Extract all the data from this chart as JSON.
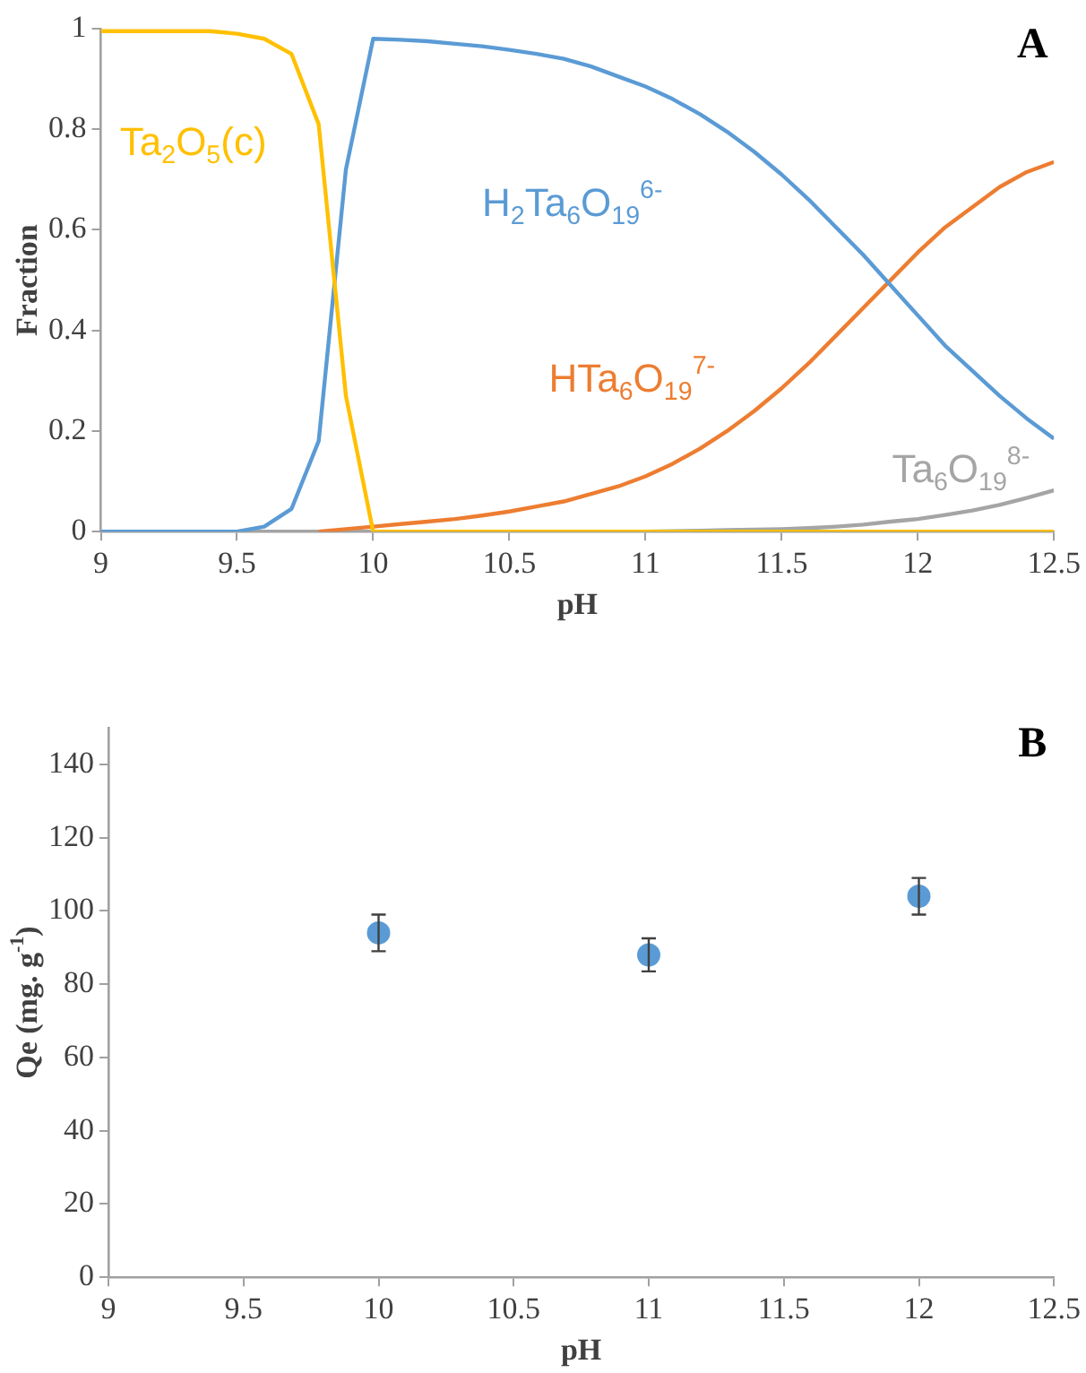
{
  "chart_data": [
    {
      "type": "line",
      "xlabel": "pH",
      "ylabel": "Fraction",
      "annotations": [
        "A"
      ],
      "x": [
        9,
        9.1,
        9.2,
        9.3,
        9.4,
        9.5,
        9.6,
        9.7,
        9.8,
        9.9,
        10,
        10.1,
        10.2,
        10.3,
        10.4,
        10.5,
        10.6,
        10.7,
        10.8,
        10.9,
        11,
        11.1,
        11.2,
        11.3,
        11.4,
        11.5,
        11.6,
        11.7,
        11.8,
        11.9,
        12,
        12.1,
        12.2,
        12.3,
        12.4,
        12.5
      ],
      "series": [
        {
          "name": "Ta$_{2}$O$_{5}$(c)",
          "color": "#ffc000",
          "values": [
            0.995,
            0.995,
            0.995,
            0.995,
            0.995,
            0.99,
            0.98,
            0.95,
            0.81,
            0.27,
            0,
            0,
            0,
            0,
            0,
            0,
            0,
            0,
            0,
            0,
            0,
            0,
            0,
            0,
            0,
            0,
            0,
            0,
            0,
            0,
            0,
            0,
            0,
            0,
            0,
            0
          ]
        },
        {
          "name": "H$_{2}$Ta$_{6}$O$_{19}$$^{6-}$",
          "color": "#5b9bd5",
          "values": [
            0,
            0,
            0,
            0,
            0,
            0,
            0.01,
            0.045,
            0.18,
            0.72,
            0.98,
            0.978,
            0.975,
            0.97,
            0.965,
            0.958,
            0.95,
            0.94,
            0.925,
            0.905,
            0.885,
            0.86,
            0.83,
            0.795,
            0.755,
            0.71,
            0.66,
            0.605,
            0.55,
            0.49,
            0.43,
            0.37,
            0.32,
            0.27,
            0.225,
            0.185
          ]
        },
        {
          "name": "HTa$_{6}$O$_{19}$$^{7-}$",
          "color": "#ed7d31",
          "values": [
            null,
            null,
            null,
            null,
            null,
            null,
            null,
            null,
            0,
            0.005,
            0.01,
            0.015,
            0.02,
            0.025,
            0.032,
            0.04,
            0.05,
            0.06,
            0.075,
            0.09,
            0.11,
            0.135,
            0.165,
            0.2,
            0.24,
            0.285,
            0.335,
            0.39,
            0.445,
            0.5,
            0.555,
            0.605,
            0.645,
            0.685,
            0.715,
            0.735
          ]
        },
        {
          "name": "Ta$_{6}$O$_{19}$$^{8-}$",
          "color": "#a5a5a5",
          "values": [
            0,
            0,
            0,
            0,
            0,
            0,
            0,
            0,
            0,
            0,
            0,
            0,
            0,
            0,
            0,
            0,
            0,
            0,
            0,
            0,
            0,
            0.001,
            0.002,
            0.003,
            0.004,
            0.005,
            0.007,
            0.01,
            0.014,
            0.02,
            0.025,
            0.033,
            0.042,
            0.053,
            0.067,
            0.082
          ]
        }
      ],
      "xlim": [
        9,
        12.5
      ],
      "xticks": [
        9,
        9.5,
        10,
        10.5,
        11,
        11.5,
        12,
        12.5
      ],
      "ylim": [
        0,
        1
      ],
      "yticks": [
        0,
        0.2,
        0.4,
        0.6,
        0.8,
        1
      ]
    },
    {
      "type": "scatter",
      "xlabel": "pH",
      "ylabel": "Qe (mg. g$^{-1}$)",
      "annotations": [
        "B"
      ],
      "x": [
        10,
        11,
        12
      ],
      "values": [
        94,
        88,
        104
      ],
      "errors": [
        5,
        4.5,
        5
      ],
      "color": "#5b9bd5",
      "marker": "circle",
      "xlim": [
        9,
        12.5
      ],
      "xticks": [
        9,
        9.5,
        10,
        10.5,
        11,
        11.5,
        12,
        12.5
      ],
      "ylim": [
        0,
        150
      ],
      "yticks": [
        0,
        20,
        40,
        60,
        80,
        100,
        120,
        140
      ]
    }
  ]
}
